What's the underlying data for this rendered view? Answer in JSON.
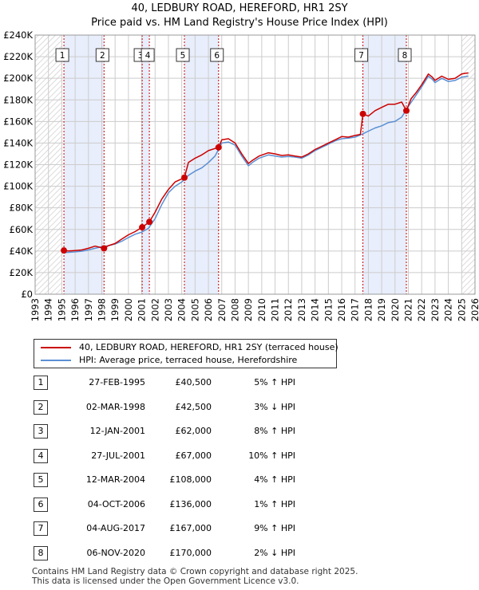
{
  "title_line1": "40, LEDBURY ROAD, HEREFORD, HR1 2SY",
  "title_line2": "Price paid vs. HM Land Registry's House Price Index (HPI)",
  "legend": {
    "red_label": "40, LEDBURY ROAD, HEREFORD, HR1 2SY (terraced house)",
    "blue_label": "HPI: Average price, terraced house, Herefordshire"
  },
  "colors": {
    "red": "#cc0000",
    "blue": "#5b8fd4",
    "band": "#e8eefb",
    "grid": "#cccccc"
  },
  "transactions": [
    {
      "num": "1",
      "date": "27-FEB-1995",
      "price": "£40,500",
      "hpi": "5% ↑ HPI"
    },
    {
      "num": "2",
      "date": "02-MAR-1998",
      "price": "£42,500",
      "hpi": "3% ↓ HPI"
    },
    {
      "num": "3",
      "date": "12-JAN-2001",
      "price": "£62,000",
      "hpi": "8% ↑ HPI"
    },
    {
      "num": "4",
      "date": "27-JUL-2001",
      "price": "£67,000",
      "hpi": "10% ↑ HPI"
    },
    {
      "num": "5",
      "date": "12-MAR-2004",
      "price": "£108,000",
      "hpi": "4% ↑ HPI"
    },
    {
      "num": "6",
      "date": "04-OCT-2006",
      "price": "£136,000",
      "hpi": "1% ↑ HPI"
    },
    {
      "num": "7",
      "date": "04-AUG-2017",
      "price": "£167,000",
      "hpi": "9% ↑ HPI"
    },
    {
      "num": "8",
      "date": "06-NOV-2020",
      "price": "£170,000",
      "hpi": "2% ↓ HPI"
    }
  ],
  "footer_line1": "Contains HM Land Registry data © Crown copyright and database right 2025.",
  "footer_line2": "This data is licensed under the Open Government Licence v3.0.",
  "chart_data": {
    "type": "line",
    "title": "40, LEDBURY ROAD, HEREFORD, HR1 2SY",
    "subtitle": "Price paid vs. HM Land Registry's House Price Index (HPI)",
    "xlim": [
      1993,
      2026
    ],
    "ylim": [
      0,
      240000
    ],
    "y_ticks": [
      0,
      20000,
      40000,
      60000,
      80000,
      100000,
      120000,
      140000,
      160000,
      180000,
      200000,
      220000,
      240000
    ],
    "y_tick_labels": [
      "£0",
      "£20K",
      "£40K",
      "£60K",
      "£80K",
      "£100K",
      "£120K",
      "£140K",
      "£160K",
      "£180K",
      "£200K",
      "£220K",
      "£240K"
    ],
    "x_ticks": [
      1993,
      1994,
      1995,
      1996,
      1997,
      1998,
      1999,
      2000,
      2001,
      2002,
      2003,
      2004,
      2005,
      2006,
      2007,
      2008,
      2009,
      2010,
      2011,
      2012,
      2013,
      2014,
      2015,
      2016,
      2017,
      2018,
      2019,
      2020,
      2021,
      2022,
      2023,
      2024,
      2025,
      2026
    ],
    "shaded_bands": [
      [
        1995.16,
        1998.17
      ],
      [
        2001.03,
        2001.57
      ],
      [
        2004.2,
        2006.76
      ],
      [
        2017.59,
        2020.85
      ]
    ],
    "hatched_regions": [
      [
        1993,
        1995.0
      ],
      [
        2025.0,
        2026
      ]
    ],
    "sale_points": [
      {
        "label": "1",
        "x": 1995.16,
        "y": 40500
      },
      {
        "label": "2",
        "x": 1998.17,
        "y": 42500
      },
      {
        "label": "3",
        "x": 2001.03,
        "y": 62000
      },
      {
        "label": "4",
        "x": 2001.57,
        "y": 67000
      },
      {
        "label": "5",
        "x": 2004.2,
        "y": 108000
      },
      {
        "label": "6",
        "x": 2006.76,
        "y": 136000
      },
      {
        "label": "7",
        "x": 2017.59,
        "y": 167000
      },
      {
        "label": "8",
        "x": 2020.85,
        "y": 170000
      }
    ],
    "series": [
      {
        "name": "40, LEDBURY ROAD, HEREFORD, HR1 2SY (terraced house)",
        "color": "#cc0000",
        "x": [
          1995.16,
          1995.5,
          1996,
          1996.5,
          1997,
          1997.5,
          1998.17,
          1998.5,
          1999,
          1999.5,
          2000,
          2000.5,
          2001.03,
          2001.57,
          2002,
          2002.5,
          2003,
          2003.5,
          2004.2,
          2004.5,
          2005,
          2005.5,
          2006,
          2006.76,
          2007,
          2007.5,
          2008,
          2008.5,
          2009,
          2009.3,
          2009.8,
          2010.5,
          2011,
          2011.5,
          2012,
          2012.5,
          2013,
          2013.5,
          2014,
          2014.5,
          2015,
          2015.5,
          2016,
          2016.5,
          2017,
          2017.4,
          2017.59,
          2018,
          2018.5,
          2019,
          2019.5,
          2020,
          2020.5,
          2020.85,
          2021.2,
          2021.6,
          2022,
          2022.5,
          2022.8,
          2023,
          2023.5,
          2024,
          2024.5,
          2025,
          2025.5
        ],
        "y": [
          40500,
          40000,
          40500,
          41000,
          42500,
          44500,
          42500,
          45000,
          47000,
          51000,
          55000,
          58000,
          62000,
          67000,
          76000,
          88000,
          97000,
          104000,
          108000,
          122000,
          126000,
          129000,
          133000,
          136000,
          143000,
          144000,
          140000,
          130000,
          121000,
          124000,
          128000,
          131000,
          130000,
          128500,
          129000,
          128000,
          127000,
          130000,
          134000,
          137000,
          140000,
          143000,
          146000,
          145500,
          147000,
          148000,
          167000,
          165000,
          170000,
          173000,
          176000,
          176000,
          178000,
          170000,
          181000,
          187000,
          194000,
          204000,
          201000,
          198000,
          202000,
          199000,
          200000,
          204000,
          205000
        ]
      },
      {
        "name": "HPI: Average price, terraced house, Herefordshire",
        "color": "#5b8fd4",
        "x": [
          1995,
          1995.5,
          1996,
          1996.5,
          1997,
          1997.5,
          1998,
          1998.5,
          1999,
          1999.5,
          2000,
          2000.5,
          2001,
          2001.5,
          2002,
          2002.5,
          2003,
          2003.5,
          2004,
          2004.5,
          2005,
          2005.5,
          2006,
          2006.5,
          2007,
          2007.5,
          2008,
          2008.5,
          2009,
          2009.3,
          2009.8,
          2010.5,
          2011,
          2011.5,
          2012,
          2012.5,
          2013,
          2013.5,
          2014,
          2014.5,
          2015,
          2015.5,
          2016,
          2016.5,
          2017,
          2017.5,
          2018,
          2018.5,
          2019,
          2019.5,
          2020,
          2020.5,
          2021,
          2021.5,
          2022,
          2022.5,
          2022.8,
          2023,
          2023.5,
          2024,
          2024.5,
          2025,
          2025.5
        ],
        "y": [
          38500,
          38800,
          39200,
          39800,
          41000,
          42500,
          44000,
          45000,
          46500,
          49000,
          52500,
          55500,
          57500,
          61000,
          70000,
          83000,
          94000,
          100000,
          104000,
          110000,
          114000,
          117000,
          122000,
          128000,
          140000,
          141000,
          138000,
          128000,
          119000,
          122000,
          126000,
          129000,
          128000,
          127000,
          127500,
          127000,
          126000,
          129000,
          133000,
          136000,
          139000,
          142000,
          144000,
          144500,
          145500,
          148000,
          151000,
          154000,
          156000,
          159000,
          160000,
          164000,
          174000,
          183000,
          192000,
          202000,
          199000,
          196000,
          200000,
          197000,
          198000,
          201000,
          202000
        ]
      }
    ]
  }
}
